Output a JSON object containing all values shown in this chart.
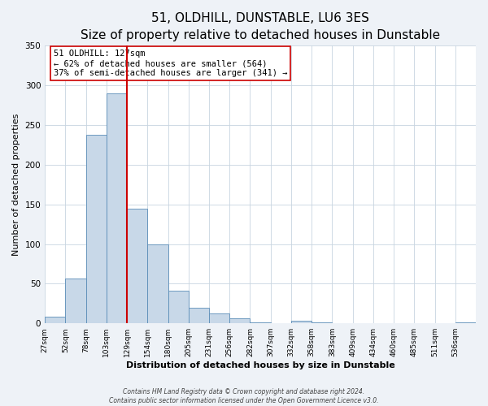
{
  "title": "51, OLDHILL, DUNSTABLE, LU6 3ES",
  "subtitle": "Size of property relative to detached houses in Dunstable",
  "xlabel": "Distribution of detached houses by size in Dunstable",
  "ylabel": "Number of detached properties",
  "bar_labels": [
    "27sqm",
    "52sqm",
    "78sqm",
    "103sqm",
    "129sqm",
    "154sqm",
    "180sqm",
    "205sqm",
    "231sqm",
    "256sqm",
    "282sqm",
    "307sqm",
    "332sqm",
    "358sqm",
    "383sqm",
    "409sqm",
    "434sqm",
    "460sqm",
    "485sqm",
    "511sqm",
    "536sqm"
  ],
  "bar_values": [
    8,
    57,
    238,
    290,
    145,
    100,
    41,
    20,
    12,
    6,
    1,
    0,
    3,
    1,
    0,
    0,
    0,
    0,
    0,
    0,
    1
  ],
  "bar_color": "#c8d8e8",
  "bar_edge_color": "#5b8db8",
  "vline_x_index": 4,
  "vline_color": "#cc0000",
  "annotation_title": "51 OLDHILL: 127sqm",
  "annotation_line1": "← 62% of detached houses are smaller (564)",
  "annotation_line2": "37% of semi-detached houses are larger (341) →",
  "annotation_box_color": "#ffffff",
  "annotation_border_color": "#cc0000",
  "ylim": [
    0,
    350
  ],
  "footnote1": "Contains HM Land Registry data © Crown copyright and database right 2024.",
  "footnote2": "Contains public sector information licensed under the Open Government Licence v3.0.",
  "background_color": "#eef2f7",
  "plot_background": "#ffffff",
  "title_fontsize": 11,
  "subtitle_fontsize": 9,
  "axis_label_fontsize": 8,
  "tick_fontsize": 6.5,
  "annotation_fontsize": 7.5,
  "footnote_fontsize": 5.5,
  "grid_color": "#c8d4e0",
  "ylabel_fontsize": 8
}
